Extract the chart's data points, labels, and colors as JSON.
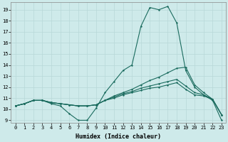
{
  "xlabel": "Humidex (Indice chaleur)",
  "xlim": [
    -0.5,
    23.5
  ],
  "ylim": [
    8.8,
    19.7
  ],
  "yticks": [
    9,
    10,
    11,
    12,
    13,
    14,
    15,
    16,
    17,
    18,
    19
  ],
  "xticks": [
    0,
    1,
    2,
    3,
    4,
    5,
    6,
    7,
    8,
    9,
    10,
    11,
    12,
    13,
    14,
    15,
    16,
    17,
    18,
    19,
    20,
    21,
    22,
    23
  ],
  "bg_color": "#ceeaea",
  "grid_color": "#b8d8d8",
  "line_color": "#1a6b5e",
  "lines": [
    [
      10.3,
      10.5,
      10.8,
      10.8,
      10.5,
      10.3,
      9.6,
      9.0,
      9.0,
      10.1,
      11.5,
      12.5,
      13.5,
      14.0,
      17.5,
      19.2,
      19.0,
      19.3,
      17.8,
      13.5,
      12.0,
      11.3,
      10.8,
      9.0
    ],
    [
      10.3,
      10.5,
      10.8,
      10.8,
      10.6,
      10.5,
      10.4,
      10.3,
      10.3,
      10.4,
      10.8,
      11.2,
      11.5,
      11.8,
      12.2,
      12.6,
      12.9,
      13.3,
      13.7,
      13.8,
      12.2,
      11.5,
      10.9,
      9.5
    ],
    [
      10.3,
      10.5,
      10.8,
      10.8,
      10.6,
      10.5,
      10.4,
      10.3,
      10.3,
      10.4,
      10.8,
      11.1,
      11.4,
      11.6,
      11.9,
      12.1,
      12.3,
      12.5,
      12.7,
      12.1,
      11.5,
      11.3,
      10.9,
      9.5
    ],
    [
      10.3,
      10.5,
      10.8,
      10.8,
      10.6,
      10.5,
      10.4,
      10.3,
      10.3,
      10.4,
      10.8,
      11.0,
      11.3,
      11.5,
      11.7,
      11.9,
      12.0,
      12.2,
      12.4,
      11.8,
      11.3,
      11.2,
      10.9,
      9.5
    ]
  ],
  "marker_size": 2.0,
  "linewidth": 0.8,
  "xlabel_fontsize": 6.0,
  "tick_fontsize": 5.0
}
